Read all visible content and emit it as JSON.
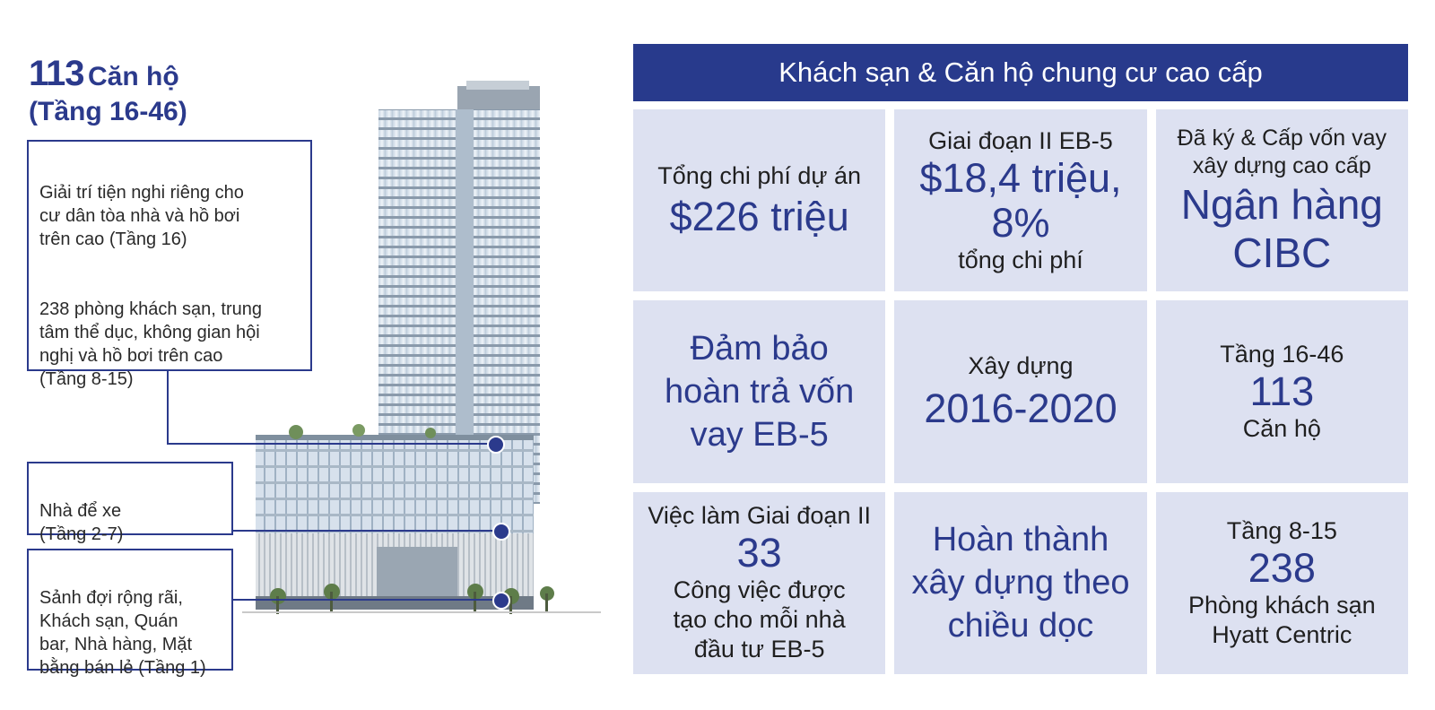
{
  "left_title": {
    "number": "113",
    "unit": "Căn hộ",
    "floors": "(Tầng 16-46)"
  },
  "callouts": [
    {
      "paragraphs": [
        "Giải trí tiện nghi riêng cho\ncư dân tòa nhà và hồ bơi\ntrên cao (Tầng 16)",
        "238 phòng khách sạn, trung\ntâm thể dục, không gian hội\nnghị và hồ bơi trên cao\n(Tầng 8-15)"
      ]
    },
    {
      "text": "Nhà để xe\n(Tầng 2-7)"
    },
    {
      "text": "Sảnh đợi rộng rãi,\nKhách sạn, Quán\nbar, Nhà hàng, Mặt\nbằng bán lẻ (Tầng 1)"
    }
  ],
  "header": "Khách sạn & Căn hộ chung cư cao cấp",
  "cells": [
    {
      "top": "Tổng chi phí dự án",
      "main": "$226 triệu",
      "bottom": ""
    },
    {
      "top": "Giai đoạn II EB-5",
      "main": "$18,4 triệu,\n8%",
      "bottom": "tổng chi phí"
    },
    {
      "top": "Đã ký & Cấp vốn vay\nxây dựng cao cấp",
      "main": "Ngân hàng\nCIBC",
      "bottom": ""
    },
    {
      "top": "",
      "main": "Đảm bảo\nhoàn trả vốn\nvay EB-5",
      "bottom": ""
    },
    {
      "top": "Xây dựng",
      "main": "2016-2020",
      "bottom": ""
    },
    {
      "top": "Tầng 16-46",
      "main": "113",
      "bottom": "Căn hộ"
    },
    {
      "top": "Việc làm Giai đoạn II",
      "main": "33",
      "bottom": "Công việc được\ntạo cho mỗi nhà\nđầu tư EB-5"
    },
    {
      "top": "",
      "main": "Hoàn thành\nxây dựng theo\nchiều dọc",
      "bottom": ""
    },
    {
      "top": "Tầng 8-15",
      "main": "238",
      "bottom": "Phòng khách sạn\nHyatt Centric"
    }
  ],
  "colors": {
    "navy": "#283a8c",
    "cell_bg": "#dde1f1"
  }
}
